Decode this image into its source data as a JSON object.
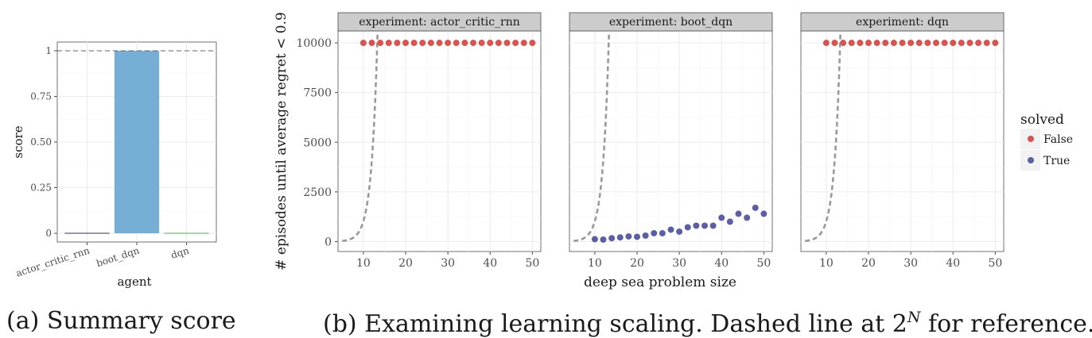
{
  "chart_data": [
    {
      "type": "bar",
      "categories": [
        "actor_critic_rnn",
        "boot_dqn",
        "dqn"
      ],
      "values": [
        0,
        1,
        0
      ],
      "colors": [
        "#3a2a6b",
        "#76aed6",
        "#4caf50"
      ],
      "xlabel": "agent",
      "ylabel": "score",
      "ylim": [
        0,
        1
      ],
      "yticks": [
        0,
        0.25,
        0.5,
        0.75,
        1
      ],
      "ytick_labels": [
        "0",
        "0.25",
        "0.50",
        "0.75",
        "1"
      ],
      "reference_line": 1,
      "grid": true,
      "caption": "(a) Summary score"
    },
    {
      "type": "scatter",
      "ylabel": "# episodes until average regret < 0.9",
      "xlabel": "deep sea problem size",
      "xlim": [
        4,
        52
      ],
      "ylim": [
        -500,
        10600
      ],
      "xticks": [
        10,
        20,
        30,
        40,
        50
      ],
      "yticks": [
        0,
        2500,
        5000,
        7500,
        10000
      ],
      "grid": true,
      "legend": {
        "title": "solved",
        "placement": "right",
        "entries": [
          {
            "label": "False",
            "color": "#d9534f"
          },
          {
            "label": "True",
            "color": "#5b5ea6"
          }
        ]
      },
      "reference_curve": {
        "label": "2^N",
        "x": [
          5,
          6,
          7,
          8,
          9,
          10,
          11,
          12,
          13,
          13.29
        ]
      },
      "facets": [
        {
          "strip": "experiment: actor_critic_rnn",
          "points": [
            {
              "x": 10,
              "y": 10000,
              "solved": "False"
            },
            {
              "x": 12,
              "y": 10000,
              "solved": "False"
            },
            {
              "x": 14,
              "y": 10000,
              "solved": "False"
            },
            {
              "x": 16,
              "y": 10000,
              "solved": "False"
            },
            {
              "x": 18,
              "y": 10000,
              "solved": "False"
            },
            {
              "x": 20,
              "y": 10000,
              "solved": "False"
            },
            {
              "x": 22,
              "y": 10000,
              "solved": "False"
            },
            {
              "x": 24,
              "y": 10000,
              "solved": "False"
            },
            {
              "x": 26,
              "y": 10000,
              "solved": "False"
            },
            {
              "x": 28,
              "y": 10000,
              "solved": "False"
            },
            {
              "x": 30,
              "y": 10000,
              "solved": "False"
            },
            {
              "x": 32,
              "y": 10000,
              "solved": "False"
            },
            {
              "x": 34,
              "y": 10000,
              "solved": "False"
            },
            {
              "x": 36,
              "y": 10000,
              "solved": "False"
            },
            {
              "x": 38,
              "y": 10000,
              "solved": "False"
            },
            {
              "x": 40,
              "y": 10000,
              "solved": "False"
            },
            {
              "x": 42,
              "y": 10000,
              "solved": "False"
            },
            {
              "x": 44,
              "y": 10000,
              "solved": "False"
            },
            {
              "x": 46,
              "y": 10000,
              "solved": "False"
            },
            {
              "x": 48,
              "y": 10000,
              "solved": "False"
            },
            {
              "x": 50,
              "y": 10000,
              "solved": "False"
            }
          ]
        },
        {
          "strip": "experiment: boot_dqn",
          "points": [
            {
              "x": 10,
              "y": 120,
              "solved": "True"
            },
            {
              "x": 12,
              "y": 100,
              "solved": "True"
            },
            {
              "x": 14,
              "y": 170,
              "solved": "True"
            },
            {
              "x": 16,
              "y": 210,
              "solved": "True"
            },
            {
              "x": 18,
              "y": 260,
              "solved": "True"
            },
            {
              "x": 20,
              "y": 240,
              "solved": "True"
            },
            {
              "x": 22,
              "y": 300,
              "solved": "True"
            },
            {
              "x": 24,
              "y": 420,
              "solved": "True"
            },
            {
              "x": 26,
              "y": 420,
              "solved": "True"
            },
            {
              "x": 28,
              "y": 600,
              "solved": "True"
            },
            {
              "x": 30,
              "y": 500,
              "solved": "True"
            },
            {
              "x": 32,
              "y": 720,
              "solved": "True"
            },
            {
              "x": 34,
              "y": 800,
              "solved": "True"
            },
            {
              "x": 36,
              "y": 800,
              "solved": "True"
            },
            {
              "x": 38,
              "y": 800,
              "solved": "True"
            },
            {
              "x": 40,
              "y": 1200,
              "solved": "True"
            },
            {
              "x": 42,
              "y": 1000,
              "solved": "True"
            },
            {
              "x": 44,
              "y": 1400,
              "solved": "True"
            },
            {
              "x": 46,
              "y": 1200,
              "solved": "True"
            },
            {
              "x": 48,
              "y": 1700,
              "solved": "True"
            },
            {
              "x": 50,
              "y": 1400,
              "solved": "True"
            }
          ]
        },
        {
          "strip": "experiment: dqn",
          "points": [
            {
              "x": 10,
              "y": 10000,
              "solved": "False"
            },
            {
              "x": 12,
              "y": 10000,
              "solved": "False"
            },
            {
              "x": 14,
              "y": 10000,
              "solved": "False"
            },
            {
              "x": 16,
              "y": 10000,
              "solved": "False"
            },
            {
              "x": 18,
              "y": 10000,
              "solved": "False"
            },
            {
              "x": 20,
              "y": 10000,
              "solved": "False"
            },
            {
              "x": 22,
              "y": 10000,
              "solved": "False"
            },
            {
              "x": 24,
              "y": 10000,
              "solved": "False"
            },
            {
              "x": 26,
              "y": 10000,
              "solved": "False"
            },
            {
              "x": 28,
              "y": 10000,
              "solved": "False"
            },
            {
              "x": 30,
              "y": 10000,
              "solved": "False"
            },
            {
              "x": 32,
              "y": 10000,
              "solved": "False"
            },
            {
              "x": 34,
              "y": 10000,
              "solved": "False"
            },
            {
              "x": 36,
              "y": 10000,
              "solved": "False"
            },
            {
              "x": 38,
              "y": 10000,
              "solved": "False"
            },
            {
              "x": 40,
              "y": 10000,
              "solved": "False"
            },
            {
              "x": 42,
              "y": 10000,
              "solved": "False"
            },
            {
              "x": 44,
              "y": 10000,
              "solved": "False"
            },
            {
              "x": 46,
              "y": 10000,
              "solved": "False"
            },
            {
              "x": 48,
              "y": 10000,
              "solved": "False"
            },
            {
              "x": 50,
              "y": 10000,
              "solved": "False"
            }
          ]
        }
      ],
      "caption_parts": {
        "prefix": "(b) Examining learning scaling. Dashed line at 2",
        "sup": "N",
        "suffix": " for reference."
      }
    }
  ]
}
